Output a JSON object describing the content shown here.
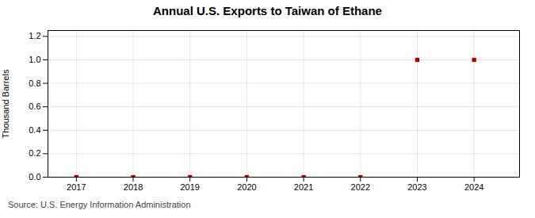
{
  "chart_data": {
    "type": "scatter",
    "title": "Annual U.S. Exports to Taiwan of Ethane",
    "ylabel": "Thousand Barrels",
    "source": "Source: U.S. Energy Information Administration",
    "x": [
      2017,
      2018,
      2019,
      2020,
      2021,
      2022,
      2023,
      2024
    ],
    "values": [
      0,
      0,
      0,
      0,
      0,
      0,
      1.0,
      1.0
    ],
    "color": "#aa0000",
    "marker": "square",
    "xlim": [
      2016.5,
      2024.8
    ],
    "ylim": [
      0.0,
      1.25
    ],
    "xticks": [
      2017,
      2018,
      2019,
      2020,
      2021,
      2022,
      2023,
      2024
    ],
    "yticks": [
      {
        "value": 0.0,
        "label": "0.0"
      },
      {
        "value": 0.2,
        "label": "0.2"
      },
      {
        "value": 0.4,
        "label": "0.4"
      },
      {
        "value": 0.6,
        "label": "0.6"
      },
      {
        "value": 0.8,
        "label": "0.8"
      },
      {
        "value": 1.0,
        "label": "1.0"
      },
      {
        "value": 1.2,
        "label": "1.2"
      }
    ],
    "grid": true
  }
}
